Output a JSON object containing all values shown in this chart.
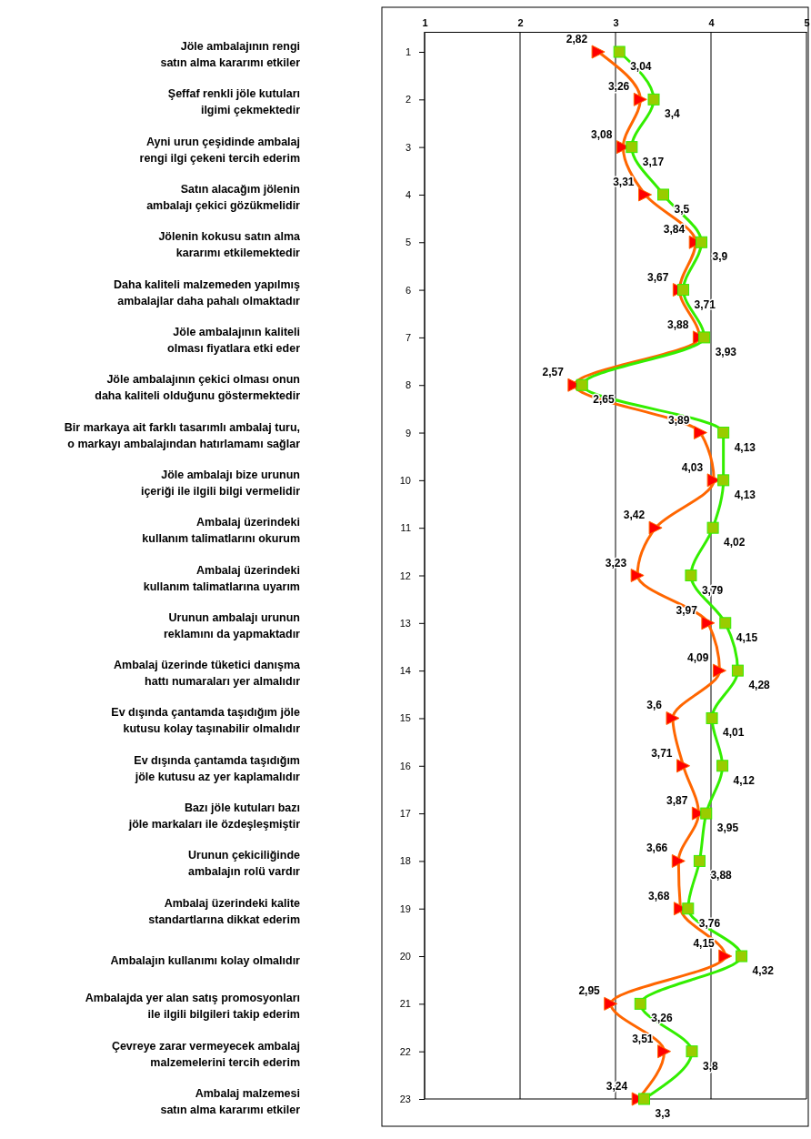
{
  "chart_data": {
    "type": "line",
    "orientation": "horizontal",
    "categories": [
      "1",
      "2",
      "3",
      "4",
      "5",
      "6",
      "7",
      "8",
      "9",
      "10",
      "11",
      "12",
      "13",
      "14",
      "15",
      "16",
      "17",
      "18",
      "19",
      "20",
      "21",
      "22",
      "23"
    ],
    "xlim": [
      1,
      5
    ],
    "xticks": [
      1,
      2,
      3,
      4,
      5
    ],
    "grid": "x",
    "line_style": "solid",
    "series": [
      {
        "color": "#ff6600",
        "marker": "triangle",
        "values": [
          2.82,
          3.26,
          3.08,
          3.31,
          3.84,
          3.67,
          3.88,
          2.57,
          3.89,
          4.03,
          3.42,
          3.23,
          3.97,
          4.09,
          3.6,
          3.71,
          3.87,
          3.66,
          3.68,
          4.15,
          2.95,
          3.51,
          3.24
        ],
        "value_labels": [
          "2,82",
          "3,26",
          "3,08",
          "3,31",
          "3,84",
          "3,67",
          "3,88",
          "2,57",
          "3,89",
          "4,03",
          "3,42",
          "3,23",
          "3,97",
          "4,09",
          "3,6",
          "3,71",
          "3,87",
          "3,66",
          "3,68",
          "4,15",
          "2,95",
          "3,51",
          "3,24"
        ]
      },
      {
        "color": "#33ee00",
        "marker": "square",
        "values": [
          3.04,
          3.4,
          3.17,
          3.5,
          3.9,
          3.71,
          3.93,
          2.65,
          4.13,
          4.13,
          4.02,
          3.79,
          4.15,
          4.28,
          4.01,
          4.12,
          3.95,
          3.88,
          3.76,
          4.32,
          3.26,
          3.8,
          3.3
        ],
        "value_labels": [
          "3,04",
          "3,4",
          "3,17",
          "3,5",
          "3,9",
          "3,71",
          "3,93",
          "2,65",
          "4,13",
          "4,13",
          "4,02",
          "3,79",
          "4,15",
          "4,28",
          "4,01",
          "4,12",
          "3,95",
          "3,88",
          "3,76",
          "4,32",
          "3,26",
          "3,8",
          "3,3"
        ]
      }
    ],
    "annotations": [
      "Jöle ambalajının rengi\nsatın alma kararımı etkiler",
      "Şeffaf renkli jöle kutuları\nilgimi çekmektedir",
      "Ayni urun çeşidinde ambalaj\nrengi ilgi çekeni tercih ederim",
      "Satın alacağım jölenin\nambalajı çekici gözükmelidir",
      "Jölenin kokusu satın alma\nkararımı etkilemektedir",
      "Daha kaliteli malzemeden yapılmış\nambalajlar daha pahalı olmaktadır",
      "Jöle ambalajının kaliteli\nolması fiyatlara etki eder",
      "Jöle ambalajının çekici olması onun\ndaha kaliteli olduğunu göstermektedir",
      "Bir markaya ait farklı tasarımlı ambalaj turu,\no markayı ambalajından hatırlamamı sağlar",
      "Jöle ambalajı bize urunun\niçeriği ile ilgili bilgi vermelidir",
      "Ambalaj üzerindeki\nkullanım talimatlarını okurum",
      "Ambalaj üzerindeki\nkullanım talimatlarına uyarım",
      "Urunun ambalajı urunun\nreklamını da yapmaktadır",
      "Ambalaj üzerinde tüketici danışma\nhattı numaraları yer almalıdır",
      "Ev dışında çantamda taşıdığım jöle\nkutusu kolay taşınabilir olmalıdır",
      "Ev dışında çantamda taşıdığım\njöle kutusu az yer kaplamalıdır",
      "Bazı jöle kutuları bazı\njöle markaları ile özdeşleşmiştir",
      "Urunun çekiciliğinde\nambalajın rolü vardır",
      "Ambalaj üzerindeki kalite\nstandartlarına dikkat ederim",
      "Ambalajın kullanımı kolay olmalıdır",
      "Ambalajda yer alan satış promosyonları\nile ilgili bilgileri takip ederim",
      "Çevreye zarar vermeyecek ambalaj\nmalzemelerini tercih ederim",
      "Ambalaj malzemesi\nsatın alma kararımı etkiler"
    ]
  }
}
